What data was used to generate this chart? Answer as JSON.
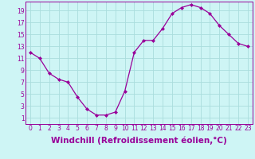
{
  "hours": [
    0,
    1,
    2,
    3,
    4,
    5,
    6,
    7,
    8,
    9,
    10,
    11,
    12,
    13,
    14,
    15,
    16,
    17,
    18,
    19,
    20,
    21,
    22,
    23
  ],
  "windchill": [
    12.0,
    11.0,
    8.5,
    7.5,
    7.0,
    4.5,
    2.5,
    1.5,
    1.5,
    2.0,
    5.5,
    12.0,
    14.0,
    14.0,
    16.0,
    18.5,
    19.5,
    20.0,
    19.5,
    18.5,
    16.5,
    15.0,
    13.5,
    13.0
  ],
  "line_color": "#990099",
  "marker": "D",
  "markersize": 2.0,
  "bg_color": "#cef5f5",
  "grid_color": "#aadddd",
  "xlabel": "Windchill (Refroidissement éolien,°C)",
  "xlabel_fontsize": 7.5,
  "ylabel_ticks": [
    1,
    3,
    5,
    7,
    9,
    11,
    13,
    15,
    17,
    19
  ],
  "xlim": [
    -0.5,
    23.5
  ],
  "ylim": [
    0,
    20.5
  ],
  "tick_fontsize": 5.5,
  "spine_color": "#990099"
}
